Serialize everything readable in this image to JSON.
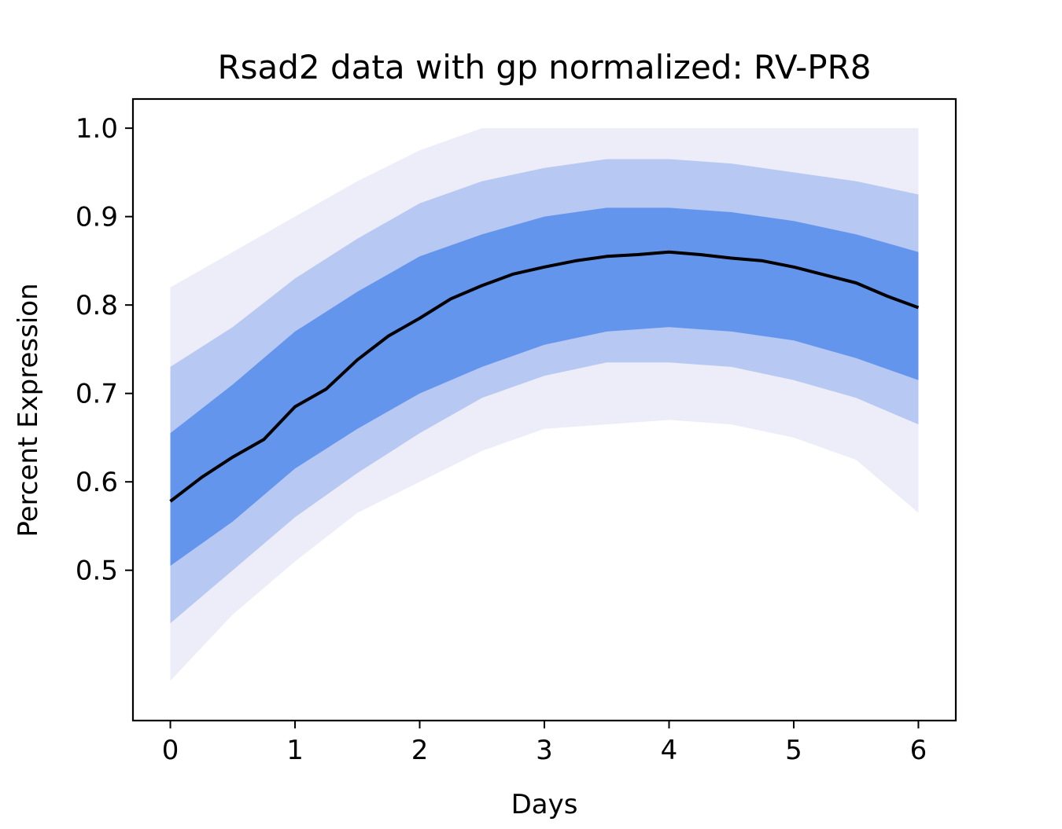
{
  "chart_data": {
    "type": "line",
    "title": "Rsad2 data with gp normalized: RV-PR8",
    "xlabel": "Days",
    "ylabel": "Percent Expression",
    "xlim": [
      -0.3,
      6.3
    ],
    "ylim": [
      0.33,
      1.033
    ],
    "x_ticks": [
      0,
      1,
      2,
      3,
      4,
      5,
      6
    ],
    "x_tick_labels": [
      "0",
      "1",
      "2",
      "3",
      "4",
      "5",
      "6"
    ],
    "y_ticks": [
      0.5,
      0.6,
      0.7,
      0.8,
      0.9,
      1.0
    ],
    "y_tick_labels": [
      "0.5",
      "0.6",
      "0.7",
      "0.8",
      "0.9",
      "1.0"
    ],
    "grid": false,
    "legend": "none",
    "colors": {
      "band_core": "#6495ED",
      "band_halo": "#8CA9EE",
      "band_faint": "#C8CCEB",
      "mean_line": "#000000"
    },
    "series": [
      {
        "kind": "mean_line",
        "x": [
          0,
          0.25,
          0.5,
          0.75,
          1,
          1.25,
          1.5,
          1.75,
          2,
          2.25,
          2.5,
          2.75,
          3,
          3.25,
          3.5,
          3.75,
          4,
          4.25,
          4.5,
          4.75,
          5,
          5.25,
          5.5,
          5.75,
          6
        ],
        "y": [
          0.578,
          0.605,
          0.628,
          0.648,
          0.685,
          0.705,
          0.738,
          0.765,
          0.785,
          0.807,
          0.822,
          0.835,
          0.843,
          0.85,
          0.855,
          0.857,
          0.86,
          0.857,
          0.853,
          0.85,
          0.843,
          0.834,
          0.825,
          0.81,
          0.797
        ]
      },
      {
        "kind": "core_band",
        "x": [
          0,
          0.5,
          1,
          1.5,
          2,
          2.5,
          3,
          3.5,
          4,
          4.5,
          5,
          5.5,
          6
        ],
        "lower": [
          0.505,
          0.555,
          0.615,
          0.66,
          0.7,
          0.73,
          0.755,
          0.77,
          0.775,
          0.77,
          0.76,
          0.74,
          0.715
        ],
        "upper": [
          0.655,
          0.71,
          0.77,
          0.815,
          0.855,
          0.88,
          0.9,
          0.91,
          0.91,
          0.905,
          0.895,
          0.88,
          0.86
        ]
      },
      {
        "kind": "halo_band",
        "x": [
          0,
          0.5,
          1,
          1.5,
          2,
          2.5,
          3,
          3.5,
          4,
          4.5,
          5,
          5.5,
          6
        ],
        "lower": [
          0.44,
          0.5,
          0.56,
          0.61,
          0.655,
          0.695,
          0.72,
          0.735,
          0.735,
          0.73,
          0.715,
          0.695,
          0.665
        ],
        "upper": [
          0.73,
          0.775,
          0.83,
          0.875,
          0.915,
          0.94,
          0.955,
          0.965,
          0.965,
          0.96,
          0.95,
          0.94,
          0.925
        ]
      },
      {
        "kind": "faint_band",
        "x": [
          0,
          0.5,
          1,
          1.5,
          2,
          2.5,
          3,
          3.5,
          4,
          4.5,
          5,
          5.5,
          6
        ],
        "lower": [
          0.375,
          0.45,
          0.51,
          0.565,
          0.6,
          0.635,
          0.66,
          0.665,
          0.67,
          0.665,
          0.65,
          0.625,
          0.565
        ],
        "upper": [
          0.82,
          0.86,
          0.9,
          0.94,
          0.975,
          1.0,
          1.0,
          1.0,
          1.0,
          1.0,
          1.0,
          1.0,
          1.0
        ]
      }
    ]
  }
}
